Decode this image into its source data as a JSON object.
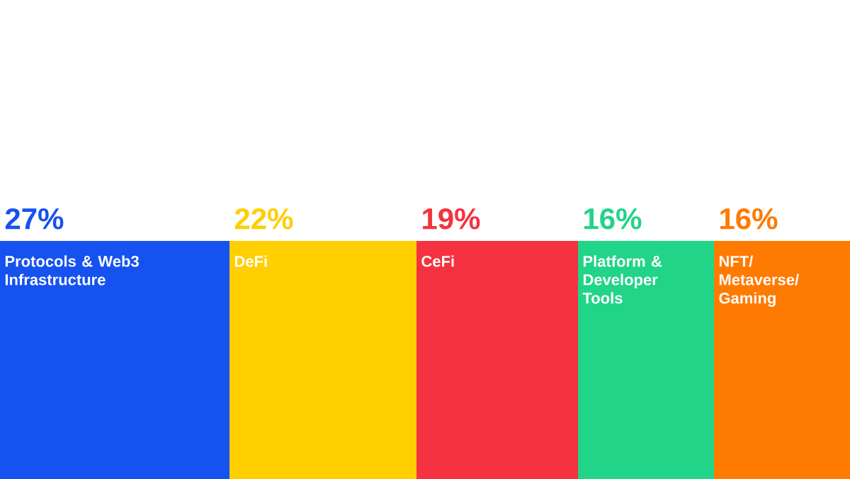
{
  "chart_data": {
    "type": "bar",
    "orientation": "horizontal",
    "stacked": true,
    "categories": [
      null
    ],
    "xlim": [
      0,
      100
    ],
    "series": [
      {
        "name": "Protocols & Web3 Infrastructure",
        "color": "#1652f0",
        "values": [
          27
        ],
        "value_labels": [
          "27%"
        ]
      },
      {
        "name": "DeFi",
        "color": "#ffcf00",
        "values": [
          22
        ],
        "value_labels": [
          "22%"
        ]
      },
      {
        "name": "CeFi",
        "color": "#f5323f",
        "values": [
          19
        ],
        "value_labels": [
          "19%"
        ]
      },
      {
        "name": "Platform & Developer Tools",
        "color": "#22d487",
        "values": [
          16
        ],
        "value_labels": [
          "16%"
        ]
      },
      {
        "name": "NFT/ Metaverse/ Gaming",
        "color": "#ff7a00",
        "values": [
          16
        ],
        "value_labels": [
          "16%"
        ]
      }
    ]
  }
}
